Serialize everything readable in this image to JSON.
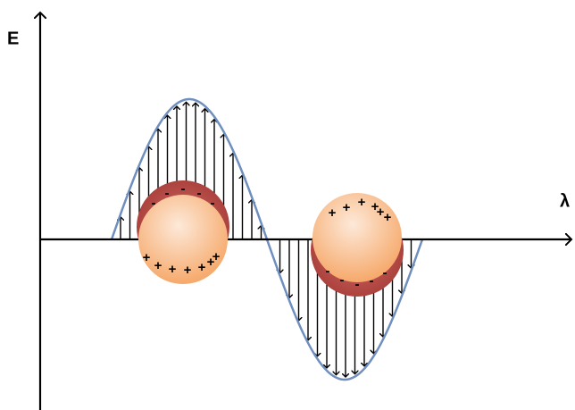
{
  "axes": {
    "y_label": "E",
    "x_label": "λ"
  },
  "sphere_1": {
    "top_charges": [
      "-",
      "-",
      "-",
      "-",
      "-"
    ],
    "bottom_charges": [
      "+",
      "+",
      "+",
      "+",
      "+",
      "+",
      "+"
    ]
  },
  "sphere_2": {
    "top_charges": [
      "+",
      "+",
      "+",
      "+",
      "+",
      "+"
    ],
    "bottom_charges": [
      "-",
      "-",
      "-",
      "-",
      "-"
    ]
  }
}
